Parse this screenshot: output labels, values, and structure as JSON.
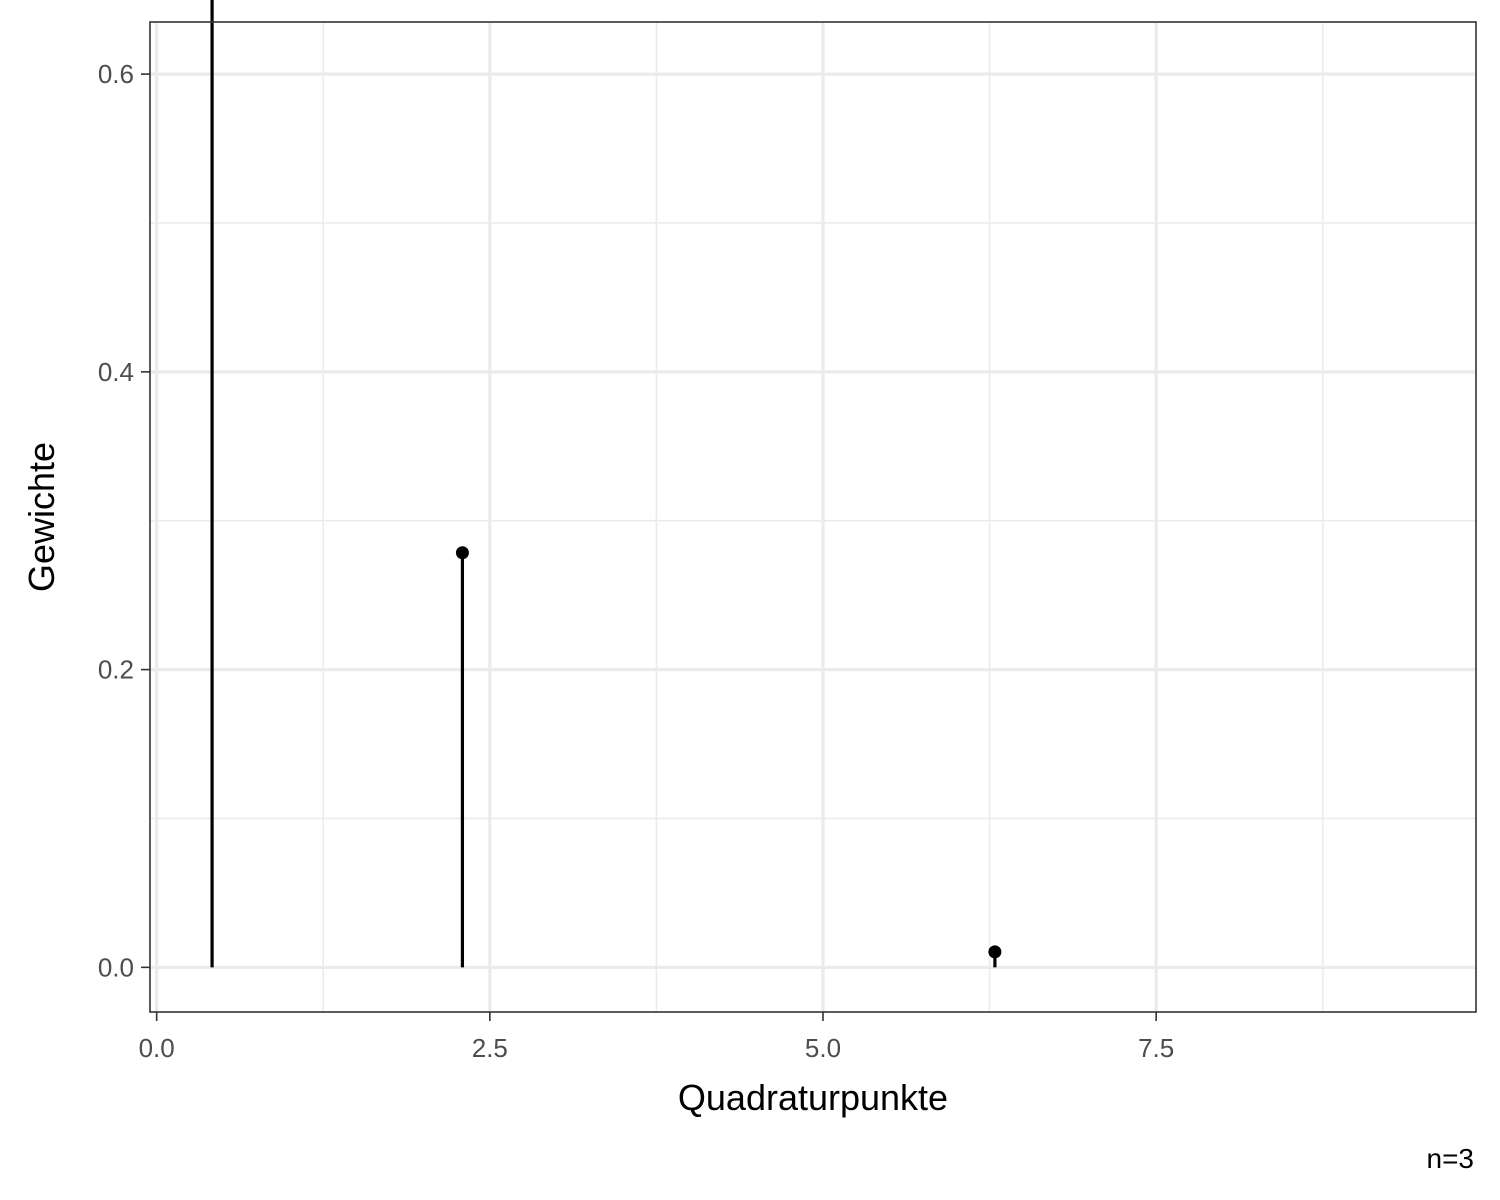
{
  "chart_data": {
    "type": "lollipop",
    "x": [
      0.4158,
      2.2943,
      6.2899
    ],
    "y": [
      0.7111,
      0.2785,
      0.0104
    ],
    "xlabel": "Quadraturpunkte",
    "ylabel": "Gewichte",
    "caption": "n=3",
    "xlim": [
      -0.05,
      9.9
    ],
    "ylim": [
      -0.03,
      0.635
    ],
    "x_ticks": [
      0.0,
      2.5,
      5.0,
      7.5
    ],
    "x_tick_labels": [
      "0.0",
      "2.5",
      "5.0",
      "7.5"
    ],
    "y_ticks": [
      0.0,
      0.2,
      0.4,
      0.6
    ],
    "y_tick_labels": [
      "0.0",
      "0.2",
      "0.4",
      "0.6"
    ],
    "grid": true,
    "colors": {
      "marks": "#000000",
      "grid": "#ebebeb",
      "panel_border": "#333333"
    }
  }
}
